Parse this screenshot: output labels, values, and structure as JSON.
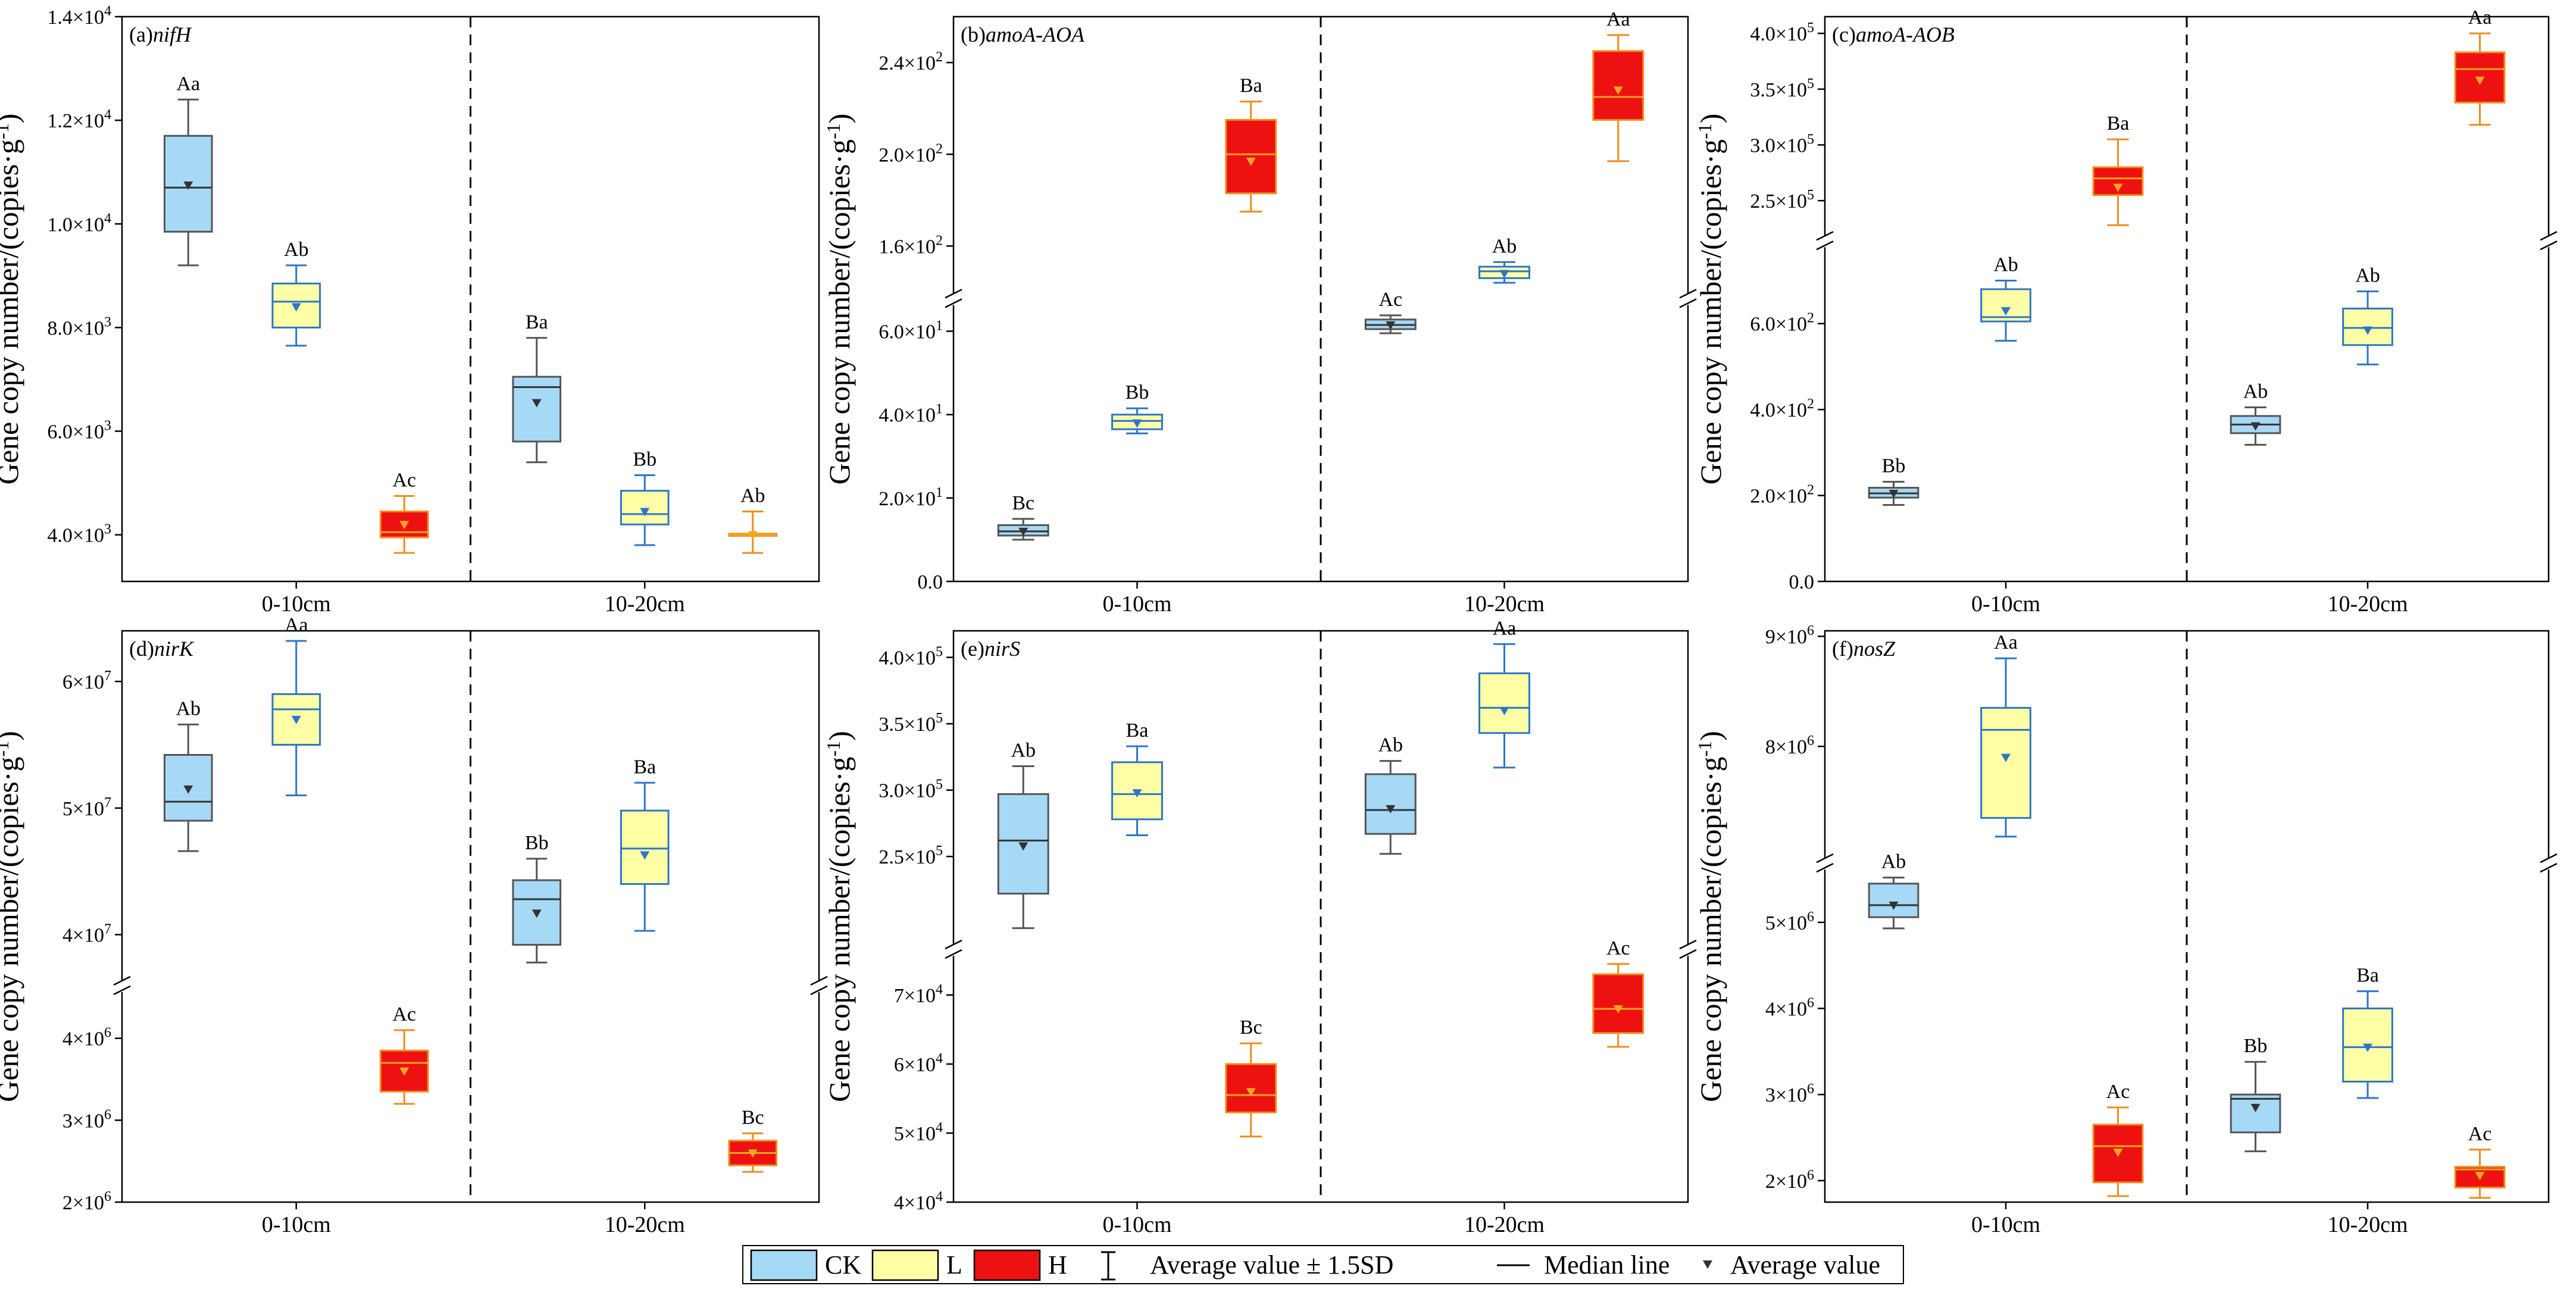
{
  "chart_data": {
    "type": "box",
    "ylabel_main": "Gene copy number/(copies",
    "ylabel_unit": "·g",
    "ylabel_sup": "-1",
    "ylabel_end": ")",
    "categories": [
      "0-10cm",
      "10-20cm"
    ],
    "groups": [
      "CK",
      "L",
      "H"
    ],
    "colors": {
      "CK": {
        "fill": "#A6D9F5",
        "stroke": "#555555",
        "median": "#333333",
        "mean": "#333333"
      },
      "L": {
        "fill": "#FFFFA6",
        "stroke": "#2E75C8",
        "median": "#2E75C8",
        "mean": "#2E75C8"
      },
      "H": {
        "fill": "#EE1111",
        "stroke": "#F08C1A",
        "median": "#F5A623",
        "mean": "#F5A623"
      }
    },
    "legend": {
      "items": [
        "CK",
        "L",
        "H"
      ],
      "whisker_label": "Average value ± 1.5SD",
      "median_label": "Median line",
      "mean_label": "Average value"
    },
    "panels": [
      {
        "label": "(a)",
        "gene": "nifH",
        "yticks": [
          {
            "v": 4000,
            "t": "4.0×10",
            "e": "3"
          },
          {
            "v": 6000,
            "t": "6.0×10",
            "e": "3"
          },
          {
            "v": 8000,
            "t": "8.0×10",
            "e": "3"
          },
          {
            "v": 10000,
            "t": "1.0×10",
            "e": "4"
          },
          {
            "v": 12000,
            "t": "1.2×10",
            "e": "4"
          },
          {
            "v": 14000,
            "t": "1.4×10",
            "e": "4"
          }
        ],
        "segments": [
          {
            "min": 3100,
            "max": 14000
          }
        ],
        "boxes": [
          {
            "cat": 0,
            "group": "CK",
            "q1": 9850,
            "median": 10700,
            "q3": 11700,
            "low": 9200,
            "high": 12400,
            "mean": 10750,
            "sig": "Aa"
          },
          {
            "cat": 0,
            "group": "L",
            "q1": 8000,
            "median": 8500,
            "q3": 8850,
            "low": 7650,
            "high": 9200,
            "mean": 8400,
            "sig": "Ab"
          },
          {
            "cat": 0,
            "group": "H",
            "q1": 3950,
            "median": 4050,
            "q3": 4450,
            "low": 3650,
            "high": 4750,
            "mean": 4200,
            "sig": "Ac"
          },
          {
            "cat": 1,
            "group": "CK",
            "q1": 5800,
            "median": 6850,
            "q3": 7050,
            "low": 5400,
            "high": 7800,
            "mean": 6550,
            "sig": "Ba"
          },
          {
            "cat": 1,
            "group": "L",
            "q1": 4200,
            "median": 4400,
            "q3": 4850,
            "low": 3800,
            "high": 5150,
            "mean": 4450,
            "sig": "Bb"
          },
          {
            "cat": 1,
            "group": "H",
            "q1": 3980,
            "median": 4000,
            "q3": 4020,
            "low": 3650,
            "high": 4450,
            "mean": 4000,
            "sig": "Ab"
          }
        ]
      },
      {
        "label": "(b)",
        "gene": "amoA-AOA",
        "yticks": [
          {
            "v": 0,
            "t": "0.0",
            "e": ""
          },
          {
            "v": 20,
            "t": "2.0×10",
            "e": "1"
          },
          {
            "v": 40,
            "t": "4.0×10",
            "e": "1"
          },
          {
            "v": 60,
            "t": "6.0×10",
            "e": "1"
          },
          {
            "v": 160,
            "t": "1.6×10",
            "e": "2"
          },
          {
            "v": 200,
            "t": "2.0×10",
            "e": "2"
          },
          {
            "v": 240,
            "t": "2.4×10",
            "e": "2"
          }
        ],
        "segments": [
          {
            "min": 0,
            "max": 66,
            "frac": 0.5
          },
          {
            "min": 140,
            "max": 260,
            "frac": 0.5
          }
        ],
        "boxes": [
          {
            "cat": 0,
            "group": "CK",
            "q1": 11,
            "median": 12,
            "q3": 13.5,
            "low": 10,
            "high": 15,
            "mean": 12,
            "sig": "Bc"
          },
          {
            "cat": 0,
            "group": "L",
            "q1": 36.5,
            "median": 38.5,
            "q3": 40,
            "low": 35.5,
            "high": 41.5,
            "mean": 38,
            "sig": "Bb"
          },
          {
            "cat": 0,
            "group": "H",
            "q1": 183,
            "median": 200,
            "q3": 215,
            "low": 175,
            "high": 223,
            "mean": 197,
            "sig": "Ba"
          },
          {
            "cat": 1,
            "group": "CK",
            "q1": 60.5,
            "median": 61.5,
            "q3": 62.8,
            "low": 59.5,
            "high": 63.8,
            "mean": 61.5,
            "sig": "Ac"
          },
          {
            "cat": 1,
            "group": "L",
            "q1": 146,
            "median": 149,
            "q3": 151,
            "low": 144,
            "high": 153,
            "mean": 148,
            "sig": "Ab"
          },
          {
            "cat": 1,
            "group": "H",
            "q1": 215,
            "median": 225,
            "q3": 245,
            "low": 197,
            "high": 252,
            "mean": 228,
            "sig": "Aa"
          }
        ]
      },
      {
        "label": "(c)",
        "gene": "amoA-AOB",
        "yticks": [
          {
            "v": 0,
            "t": "0.0",
            "e": ""
          },
          {
            "v": 200,
            "t": "2.0×10",
            "e": "2"
          },
          {
            "v": 400,
            "t": "4.0×10",
            "e": "2"
          },
          {
            "v": 600,
            "t": "6.0×10",
            "e": "2"
          },
          {
            "v": 250000,
            "t": "2.5×10",
            "e": "5"
          },
          {
            "v": 300000,
            "t": "3.0×10",
            "e": "5"
          },
          {
            "v": 350000,
            "t": "3.5×10",
            "e": "5"
          },
          {
            "v": 400000,
            "t": "4.0×10",
            "e": "5"
          }
        ],
        "segments": [
          {
            "min": 0,
            "max": 775,
            "frac": 0.605
          },
          {
            "min": 220000,
            "max": 415000,
            "frac": 0.395
          }
        ],
        "boxes": [
          {
            "cat": 0,
            "group": "CK",
            "q1": 195,
            "median": 205,
            "q3": 218,
            "low": 178,
            "high": 232,
            "mean": 205,
            "sig": "Bb"
          },
          {
            "cat": 0,
            "group": "L",
            "q1": 605,
            "median": 615,
            "q3": 680,
            "low": 560,
            "high": 700,
            "mean": 630,
            "sig": "Ab"
          },
          {
            "cat": 0,
            "group": "H",
            "q1": 255000,
            "median": 270000,
            "q3": 280000,
            "low": 228000,
            "high": 305000,
            "mean": 262000,
            "sig": "Ba"
          },
          {
            "cat": 1,
            "group": "CK",
            "q1": 345,
            "median": 365,
            "q3": 385,
            "low": 318,
            "high": 405,
            "mean": 362,
            "sig": "Ab"
          },
          {
            "cat": 1,
            "group": "L",
            "q1": 550,
            "median": 590,
            "q3": 635,
            "low": 505,
            "high": 675,
            "mean": 585,
            "sig": "Ab"
          },
          {
            "cat": 1,
            "group": "H",
            "q1": 338000,
            "median": 368000,
            "q3": 383000,
            "low": 318000,
            "high": 400000,
            "mean": 358000,
            "sig": "Aa"
          }
        ]
      },
      {
        "label": "(d)",
        "gene": "nirK",
        "yticks": [
          {
            "v": 2000000,
            "t": "2×10",
            "e": "6"
          },
          {
            "v": 3000000,
            "t": "3×10",
            "e": "6"
          },
          {
            "v": 4000000,
            "t": "4×10",
            "e": "6"
          },
          {
            "v": 40000000,
            "t": "4×10",
            "e": "7"
          },
          {
            "v": 50000000,
            "t": "5×10",
            "e": "7"
          },
          {
            "v": 60000000,
            "t": "6×10",
            "e": "7"
          }
        ],
        "segments": [
          {
            "min": 2000000,
            "max": 4550000,
            "frac": 0.375
          },
          {
            "min": 36500000,
            "max": 64000000,
            "frac": 0.625
          }
        ],
        "boxes": [
          {
            "cat": 0,
            "group": "CK",
            "q1": 49000000,
            "median": 50500000,
            "q3": 54200000,
            "low": 46600000,
            "high": 56600000,
            "mean": 51500000,
            "sig": "Ab"
          },
          {
            "cat": 0,
            "group": "L",
            "q1": 55000000,
            "median": 57800000,
            "q3": 59000000,
            "low": 51000000,
            "high": 63200000,
            "mean": 57000000,
            "sig": "Aa"
          },
          {
            "cat": 0,
            "group": "H",
            "q1": 3350000,
            "median": 3700000,
            "q3": 3850000,
            "low": 3200000,
            "high": 4100000,
            "mean": 3600000,
            "sig": "Ac"
          },
          {
            "cat": 1,
            "group": "CK",
            "q1": 39200000,
            "median": 42800000,
            "q3": 44300000,
            "low": 37800000,
            "high": 46000000,
            "mean": 41700000,
            "sig": "Bb"
          },
          {
            "cat": 1,
            "group": "L",
            "q1": 44000000,
            "median": 46800000,
            "q3": 49800000,
            "low": 40300000,
            "high": 52000000,
            "mean": 46300000,
            "sig": "Ba"
          },
          {
            "cat": 1,
            "group": "H",
            "q1": 2450000,
            "median": 2600000,
            "q3": 2750000,
            "low": 2370000,
            "high": 2840000,
            "mean": 2600000,
            "sig": "Bc"
          }
        ]
      },
      {
        "label": "(e)",
        "gene": "nirS",
        "yticks": [
          {
            "v": 40000,
            "t": "4×10",
            "e": "4"
          },
          {
            "v": 50000,
            "t": "5×10",
            "e": "4"
          },
          {
            "v": 60000,
            "t": "6×10",
            "e": "4"
          },
          {
            "v": 70000,
            "t": "7×10",
            "e": "4"
          },
          {
            "v": 250000,
            "t": "2.5×10",
            "e": "5"
          },
          {
            "v": 300000,
            "t": "3.0×10",
            "e": "5"
          },
          {
            "v": 350000,
            "t": "3.5×10",
            "e": "5"
          },
          {
            "v": 400000,
            "t": "4.0×10",
            "e": "5"
          }
        ],
        "segments": [
          {
            "min": 40000,
            "max": 75500,
            "frac": 0.44
          },
          {
            "min": 185000,
            "max": 420000,
            "frac": 0.56
          }
        ],
        "boxes": [
          {
            "cat": 0,
            "group": "CK",
            "q1": 222000,
            "median": 262000,
            "q3": 297000,
            "low": 196000,
            "high": 318000,
            "mean": 258000,
            "sig": "Ab"
          },
          {
            "cat": 0,
            "group": "L",
            "q1": 278000,
            "median": 297000,
            "q3": 321000,
            "low": 266000,
            "high": 333000,
            "mean": 298000,
            "sig": "Ba"
          },
          {
            "cat": 0,
            "group": "H",
            "q1": 53000,
            "median": 55500,
            "q3": 60000,
            "low": 49500,
            "high": 63000,
            "mean": 56000,
            "sig": "Bc"
          },
          {
            "cat": 1,
            "group": "CK",
            "q1": 267000,
            "median": 285000,
            "q3": 312000,
            "low": 252000,
            "high": 322000,
            "mean": 286000,
            "sig": "Ab"
          },
          {
            "cat": 1,
            "group": "L",
            "q1": 343000,
            "median": 362000,
            "q3": 388000,
            "low": 317000,
            "high": 410000,
            "mean": 360000,
            "sig": "Aa"
          },
          {
            "cat": 1,
            "group": "H",
            "q1": 64500,
            "median": 68000,
            "q3": 73000,
            "low": 62500,
            "high": 74500,
            "mean": 68000,
            "sig": "Ac"
          }
        ]
      },
      {
        "label": "(f)",
        "gene": "nosZ",
        "yticks": [
          {
            "v": 2000000,
            "t": "2×10",
            "e": "6"
          },
          {
            "v": 3000000,
            "t": "3×10",
            "e": "6"
          },
          {
            "v": 4000000,
            "t": "4×10",
            "e": "6"
          },
          {
            "v": 5000000,
            "t": "5×10",
            "e": "6"
          },
          {
            "v": 8000000,
            "t": "8×10",
            "e": "6"
          },
          {
            "v": 9000000,
            "t": "9×10",
            "e": "6"
          }
        ],
        "segments": [
          {
            "min": 1750000,
            "max": 5600000,
            "frac": 0.595
          },
          {
            "min": 7000000,
            "max": 9050000,
            "frac": 0.405
          }
        ],
        "boxes": [
          {
            "cat": 0,
            "group": "CK",
            "q1": 5060000,
            "median": 5200000,
            "q3": 5450000,
            "low": 4930000,
            "high": 5520000,
            "mean": 5200000,
            "sig": "Ab"
          },
          {
            "cat": 0,
            "group": "L",
            "q1": 7350000,
            "median": 8150000,
            "q3": 8350000,
            "low": 7180000,
            "high": 8800000,
            "mean": 7900000,
            "sig": "Aa"
          },
          {
            "cat": 0,
            "group": "H",
            "q1": 1980000,
            "median": 2400000,
            "q3": 2650000,
            "low": 1820000,
            "high": 2850000,
            "mean": 2330000,
            "sig": "Ac"
          },
          {
            "cat": 1,
            "group": "CK",
            "q1": 2560000,
            "median": 2950000,
            "q3": 3000000,
            "low": 2340000,
            "high": 3380000,
            "mean": 2850000,
            "sig": "Bb"
          },
          {
            "cat": 1,
            "group": "L",
            "q1": 3150000,
            "median": 3550000,
            "q3": 4000000,
            "low": 2960000,
            "high": 4200000,
            "mean": 3550000,
            "sig": "Ba"
          },
          {
            "cat": 1,
            "group": "H",
            "q1": 1920000,
            "median": 2130000,
            "q3": 2160000,
            "low": 1800000,
            "high": 2360000,
            "mean": 2060000,
            "sig": "Ac"
          }
        ]
      }
    ]
  }
}
